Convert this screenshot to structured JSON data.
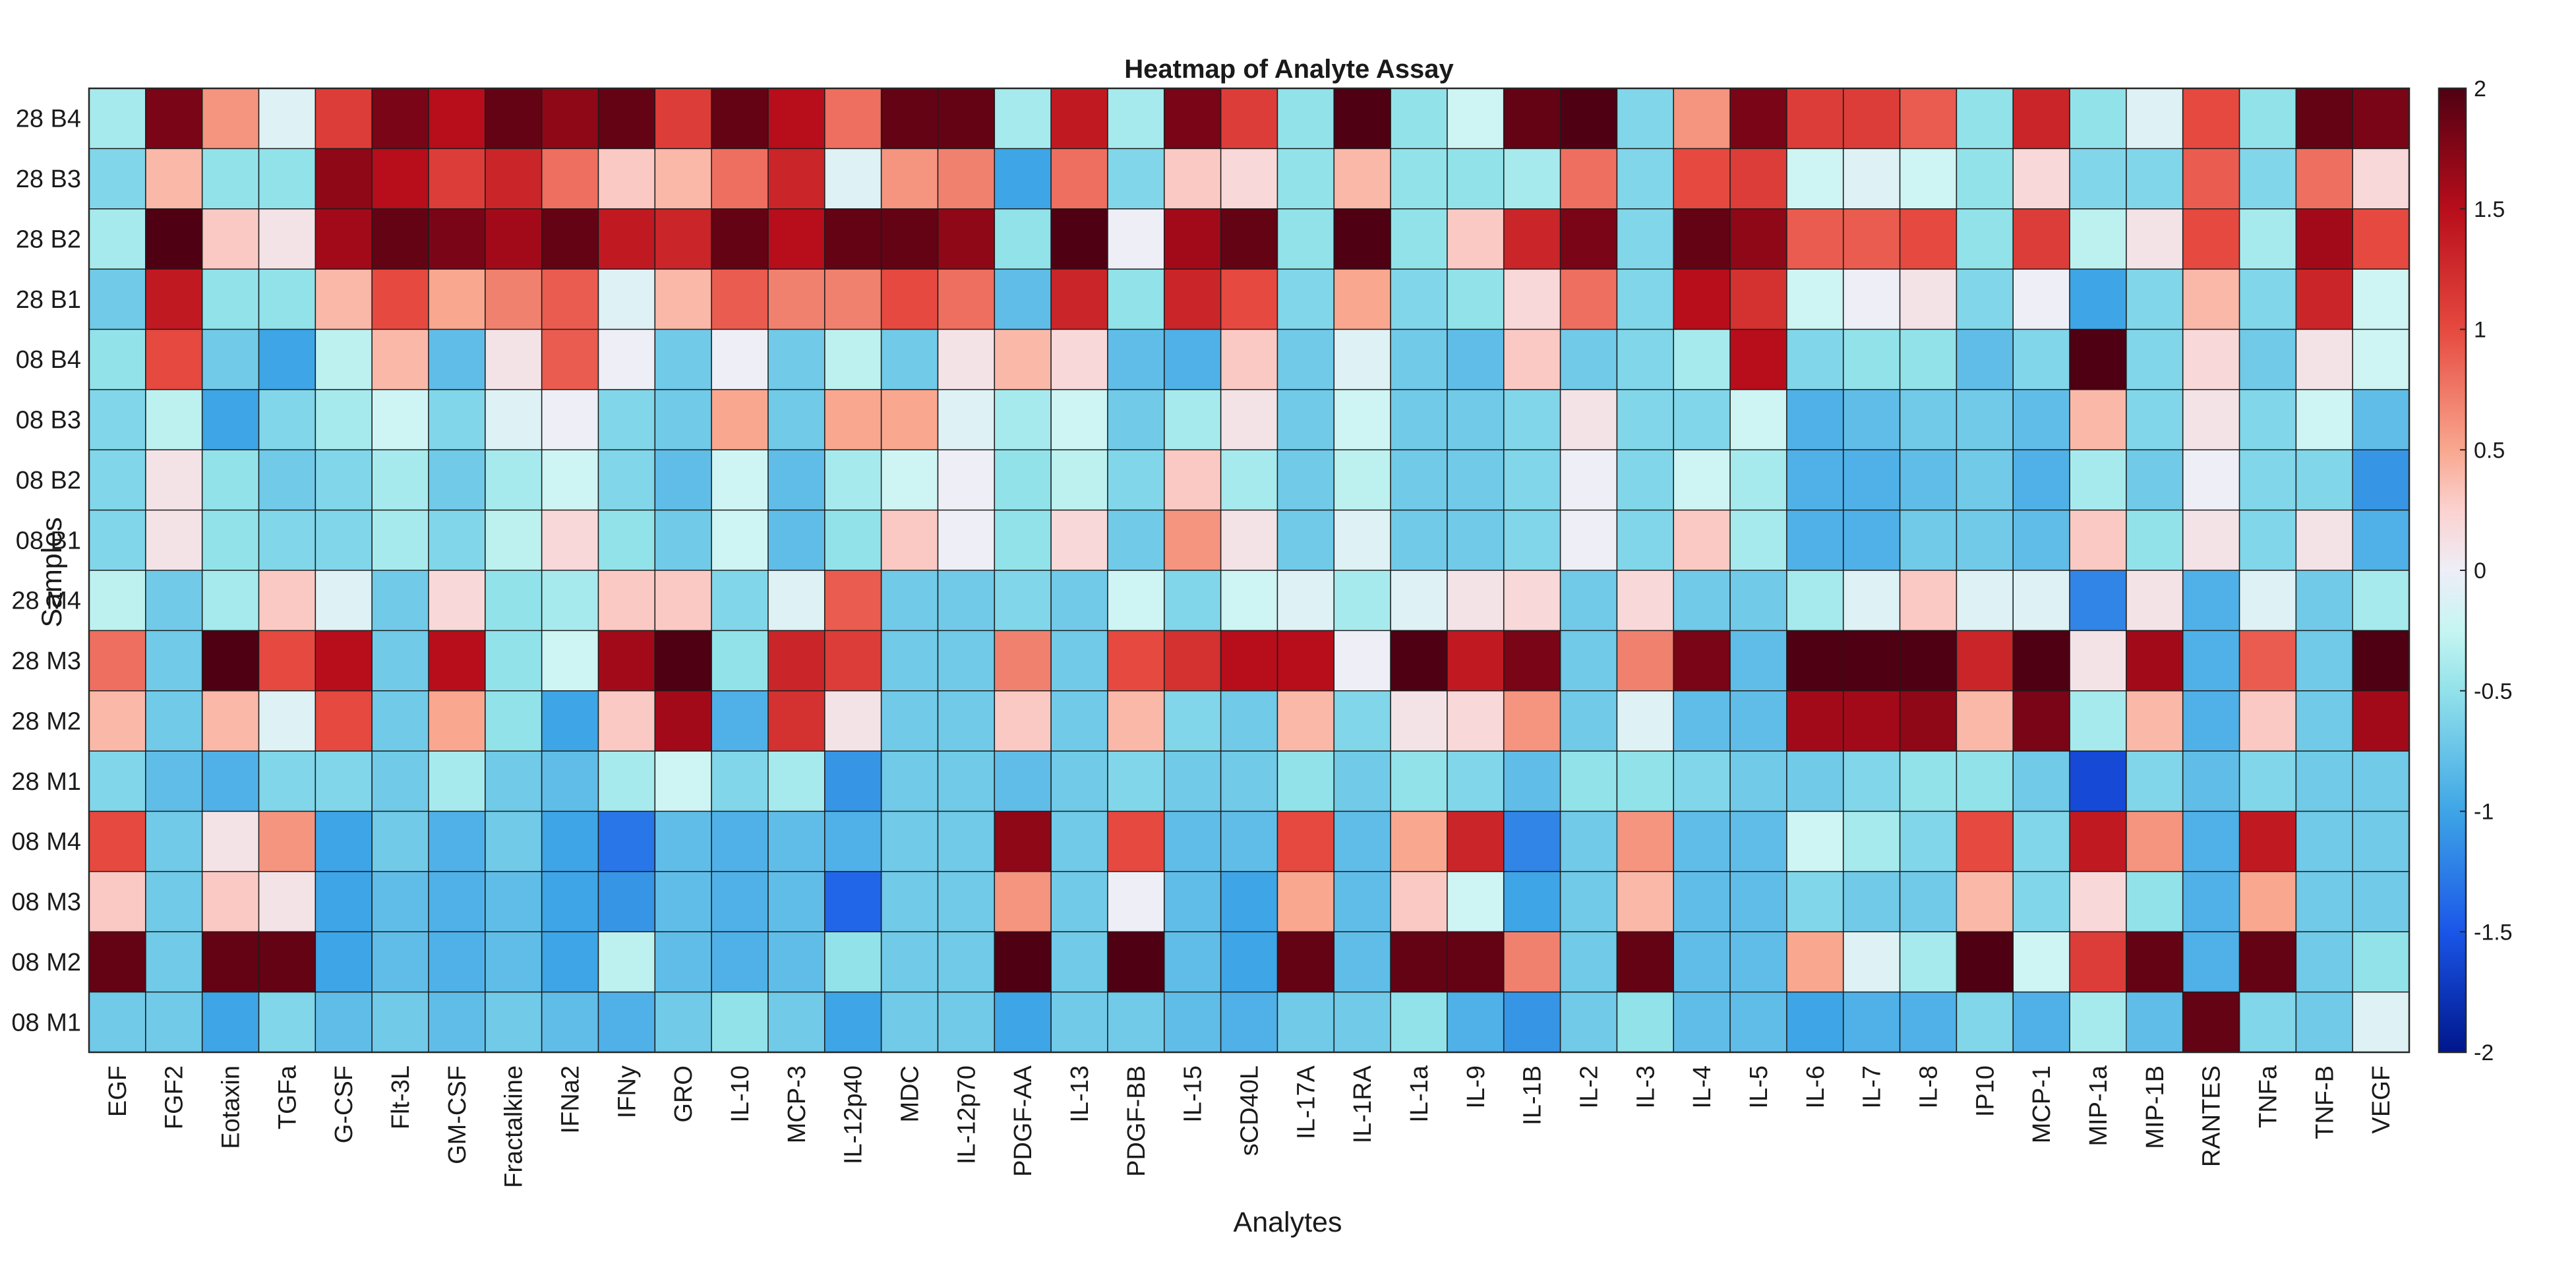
{
  "chart_data": {
    "type": "heatmap",
    "title": "Heatmap of Analyte Assay",
    "xlabel": "Analytes",
    "ylabel": "Samples",
    "x_categories": [
      "EGF",
      "FGF2",
      "Eotaxin",
      "TGFa",
      "G-CSF",
      "Flt-3L",
      "GM-CSF",
      "Fractalkine",
      "IFNa2",
      "IFNy",
      "GRO",
      "IL-10",
      "MCP-3",
      "IL-12p40",
      "MDC",
      "IL-12p70",
      "PDGF-AA",
      "IL-13",
      "PDGF-BB",
      "IL-15",
      "sCD40L",
      "IL-17A",
      "IL-1RA",
      "IL-1a",
      "IL-9",
      "IL-1B",
      "IL-2",
      "IL-3",
      "IL-4",
      "IL-5",
      "IL-6",
      "IL-7",
      "IL-8",
      "IP10",
      "MCP-1",
      "MIP-1a",
      "MIP-1B",
      "RANTES",
      "TNFa",
      "TNF-B",
      "VEGF"
    ],
    "y_categories": [
      "28 B4",
      "28 B3",
      "28 B2",
      "28 B1",
      "08 B4",
      "08 B3",
      "08 B2",
      "08 B1",
      "28 M4",
      "28 M3",
      "28 M2",
      "28 M1",
      "08 M4",
      "08 M3",
      "08 M2",
      "08 M1"
    ],
    "values": [
      [
        -0.4,
        1.8,
        0.6,
        -0.1,
        1.1,
        1.8,
        1.5,
        1.9,
        1.7,
        1.9,
        1.1,
        1.9,
        1.5,
        0.8,
        1.9,
        1.9,
        -0.4,
        1.4,
        -0.4,
        1.8,
        1.1,
        -0.5,
        2.0,
        -0.5,
        -0.2,
        1.9,
        2.0,
        -0.6,
        0.6,
        1.8,
        1.1,
        1.1,
        0.9,
        -0.5,
        1.3,
        -0.5,
        -0.1,
        1.0,
        -0.5,
        1.9,
        1.8
      ],
      [
        -0.6,
        0.4,
        -0.5,
        -0.5,
        1.7,
        1.5,
        1.1,
        1.3,
        0.8,
        0.3,
        0.4,
        0.8,
        1.3,
        -0.1,
        0.6,
        0.7,
        -1.0,
        0.8,
        -0.6,
        0.3,
        0.2,
        -0.5,
        0.4,
        -0.5,
        -0.5,
        -0.4,
        0.8,
        -0.6,
        1.0,
        1.1,
        -0.2,
        -0.1,
        -0.2,
        -0.5,
        0.2,
        -0.6,
        -0.6,
        0.9,
        -0.6,
        0.8,
        0.2
      ],
      [
        -0.4,
        2.0,
        0.3,
        0.1,
        1.6,
        1.9,
        1.8,
        1.6,
        1.9,
        1.4,
        1.3,
        1.9,
        1.5,
        1.9,
        1.9,
        1.7,
        -0.5,
        2.0,
        0.0,
        1.6,
        1.9,
        -0.5,
        2.0,
        -0.5,
        0.3,
        1.3,
        1.8,
        -0.6,
        1.9,
        1.7,
        0.9,
        0.9,
        1.0,
        -0.5,
        1.1,
        -0.3,
        0.1,
        1.0,
        -0.4,
        1.6,
        1.0
      ],
      [
        -0.7,
        1.4,
        -0.5,
        -0.5,
        0.4,
        1.0,
        0.5,
        0.7,
        0.9,
        -0.1,
        0.4,
        0.9,
        0.7,
        0.7,
        1.0,
        0.8,
        -0.8,
        1.3,
        -0.5,
        1.3,
        1.0,
        -0.6,
        0.5,
        -0.6,
        -0.5,
        0.2,
        0.8,
        -0.6,
        1.5,
        1.2,
        -0.2,
        0.0,
        0.1,
        -0.6,
        0.0,
        -1.0,
        -0.6,
        0.4,
        -0.6,
        1.3,
        -0.2
      ],
      [
        -0.5,
        1.0,
        -0.7,
        -1.0,
        -0.3,
        0.4,
        -0.8,
        0.1,
        0.9,
        0.0,
        -0.7,
        0.0,
        -0.7,
        -0.3,
        -0.7,
        0.1,
        0.4,
        0.2,
        -0.8,
        -0.9,
        0.3,
        -0.7,
        -0.1,
        -0.7,
        -0.8,
        0.3,
        -0.7,
        -0.6,
        -0.4,
        1.5,
        -0.6,
        -0.5,
        -0.5,
        -0.8,
        -0.6,
        2.0,
        -0.6,
        0.2,
        -0.7,
        0.1,
        -0.2
      ],
      [
        -0.6,
        -0.3,
        -1.0,
        -0.6,
        -0.4,
        -0.2,
        -0.6,
        -0.1,
        0.0,
        -0.6,
        -0.7,
        0.5,
        -0.7,
        0.5,
        0.5,
        -0.1,
        -0.4,
        -0.2,
        -0.7,
        -0.4,
        0.1,
        -0.7,
        -0.2,
        -0.7,
        -0.7,
        -0.6,
        0.1,
        -0.6,
        -0.6,
        -0.2,
        -0.9,
        -0.8,
        -0.7,
        -0.7,
        -0.8,
        0.4,
        -0.6,
        0.1,
        -0.6,
        -0.2,
        -0.8
      ],
      [
        -0.6,
        0.1,
        -0.5,
        -0.7,
        -0.6,
        -0.4,
        -0.7,
        -0.4,
        -0.2,
        -0.6,
        -0.8,
        -0.2,
        -0.8,
        -0.4,
        -0.2,
        0.0,
        -0.5,
        -0.3,
        -0.6,
        0.3,
        -0.4,
        -0.7,
        -0.3,
        -0.7,
        -0.7,
        -0.6,
        0.0,
        -0.6,
        -0.2,
        -0.4,
        -0.9,
        -0.9,
        -0.8,
        -0.7,
        -0.9,
        -0.4,
        -0.7,
        0.0,
        -0.6,
        -0.6,
        -1.1
      ],
      [
        -0.6,
        0.1,
        -0.5,
        -0.6,
        -0.6,
        -0.4,
        -0.6,
        -0.3,
        0.2,
        -0.5,
        -0.7,
        -0.2,
        -0.8,
        -0.5,
        0.3,
        0.0,
        -0.5,
        0.2,
        -0.7,
        0.6,
        0.1,
        -0.7,
        -0.1,
        -0.7,
        -0.7,
        -0.6,
        0.0,
        -0.6,
        0.3,
        -0.4,
        -0.9,
        -0.9,
        -0.7,
        -0.7,
        -0.8,
        0.3,
        -0.5,
        0.1,
        -0.6,
        0.1,
        -0.9
      ],
      [
        -0.3,
        -0.7,
        -0.4,
        0.3,
        -0.1,
        -0.7,
        0.2,
        -0.5,
        -0.4,
        0.3,
        0.3,
        -0.6,
        -0.1,
        0.9,
        -0.7,
        -0.7,
        -0.6,
        -0.7,
        -0.2,
        -0.6,
        -0.2,
        -0.1,
        -0.4,
        -0.1,
        0.1,
        0.2,
        -0.7,
        0.2,
        -0.7,
        -0.7,
        -0.4,
        -0.1,
        0.3,
        -0.1,
        -0.1,
        -1.2,
        0.1,
        -0.9,
        -0.1,
        -0.7,
        -0.4
      ],
      [
        0.8,
        -0.7,
        2.0,
        1.0,
        1.5,
        -0.7,
        1.5,
        -0.5,
        -0.2,
        1.6,
        2.0,
        -0.5,
        1.3,
        1.1,
        -0.7,
        -0.7,
        0.7,
        -0.7,
        1.0,
        1.2,
        1.5,
        1.5,
        0.0,
        2.0,
        1.4,
        1.8,
        -0.7,
        0.7,
        1.8,
        -0.8,
        2.0,
        2.0,
        2.0,
        1.3,
        2.0,
        0.1,
        1.6,
        -0.9,
        0.9,
        -0.7,
        2.0
      ],
      [
        0.4,
        -0.7,
        0.4,
        -0.1,
        1.0,
        -0.7,
        0.5,
        -0.5,
        -1.0,
        0.3,
        1.6,
        -0.9,
        1.2,
        0.1,
        -0.7,
        -0.7,
        0.3,
        -0.7,
        0.4,
        -0.6,
        -0.7,
        0.4,
        -0.6,
        0.1,
        0.2,
        0.6,
        -0.7,
        -0.1,
        -0.8,
        -0.8,
        1.6,
        1.6,
        1.7,
        0.4,
        1.8,
        -0.4,
        0.4,
        -0.9,
        0.3,
        -0.7,
        1.6
      ],
      [
        -0.6,
        -0.8,
        -0.9,
        -0.6,
        -0.6,
        -0.7,
        -0.4,
        -0.7,
        -0.8,
        -0.4,
        -0.2,
        -0.6,
        -0.4,
        -1.1,
        -0.7,
        -0.7,
        -0.8,
        -0.7,
        -0.6,
        -0.7,
        -0.7,
        -0.5,
        -0.7,
        -0.5,
        -0.6,
        -0.8,
        -0.5,
        -0.5,
        -0.6,
        -0.7,
        -0.7,
        -0.6,
        -0.5,
        -0.5,
        -0.7,
        -1.6,
        -0.6,
        -0.8,
        -0.6,
        -0.7,
        -0.7
      ],
      [
        1.0,
        -0.7,
        0.1,
        0.6,
        -1.0,
        -0.7,
        -0.9,
        -0.7,
        -1.0,
        -1.3,
        -0.8,
        -0.9,
        -0.8,
        -0.9,
        -0.7,
        -0.7,
        1.7,
        -0.7,
        1.0,
        -0.8,
        -0.8,
        1.0,
        -0.8,
        0.5,
        1.3,
        -1.2,
        -0.7,
        0.6,
        -0.8,
        -0.8,
        -0.2,
        -0.4,
        -0.6,
        1.0,
        -0.6,
        1.4,
        0.6,
        -0.9,
        1.4,
        -0.7,
        -0.7
      ],
      [
        0.3,
        -0.7,
        0.3,
        0.1,
        -1.0,
        -0.8,
        -0.9,
        -0.8,
        -1.0,
        -1.1,
        -0.8,
        -0.9,
        -0.8,
        -1.4,
        -0.7,
        -0.7,
        0.6,
        -0.7,
        0.0,
        -0.8,
        -1.0,
        0.5,
        -0.8,
        0.3,
        -0.2,
        -1.0,
        -0.7,
        0.4,
        -0.8,
        -0.8,
        -0.6,
        -0.7,
        -0.7,
        0.4,
        -0.6,
        0.2,
        -0.5,
        -0.9,
        0.5,
        -0.7,
        -0.7
      ],
      [
        1.9,
        -0.7,
        1.9,
        1.9,
        -1.0,
        -0.8,
        -0.9,
        -0.8,
        -1.0,
        -0.3,
        -0.8,
        -0.9,
        -0.8,
        -0.5,
        -0.7,
        -0.7,
        2.0,
        -0.7,
        2.0,
        -0.8,
        -1.0,
        1.9,
        -0.8,
        1.9,
        1.9,
        0.7,
        -0.7,
        1.9,
        -0.8,
        -0.8,
        0.5,
        -0.1,
        -0.4,
        2.0,
        -0.2,
        1.1,
        1.9,
        -0.9,
        1.9,
        -0.7,
        -0.5
      ],
      [
        -0.7,
        -0.7,
        -1.0,
        -0.6,
        -0.8,
        -0.7,
        -0.8,
        -0.7,
        -0.8,
        -0.9,
        -0.7,
        -0.5,
        -0.7,
        -1.0,
        -0.7,
        -0.7,
        -1.0,
        -0.7,
        -0.7,
        -0.8,
        -0.9,
        -0.7,
        -0.7,
        -0.5,
        -0.9,
        -1.1,
        -0.7,
        -0.5,
        -0.8,
        -0.8,
        -1.0,
        -0.9,
        -0.9,
        -0.6,
        -0.9,
        -0.4,
        -0.8,
        1.9,
        -0.6,
        -0.7,
        -0.1
      ]
    ],
    "colorbar": {
      "min": -2,
      "max": 2,
      "ticks": [
        "2",
        "1.5",
        "1",
        "0.5",
        "0",
        "-0.5",
        "-1",
        "-1.5",
        "-2"
      ],
      "tick_values": [
        2,
        1.5,
        1,
        0.5,
        0,
        -0.5,
        -1,
        -1.5,
        -2
      ]
    },
    "colormap_stops": [
      {
        "v": -2.0,
        "c": "#00168c"
      },
      {
        "v": -1.5,
        "c": "#1a56e8"
      },
      {
        "v": -1.0,
        "c": "#3ea5e6"
      },
      {
        "v": -0.5,
        "c": "#92e2ea"
      },
      {
        "v": -0.25,
        "c": "#c6f5f2"
      },
      {
        "v": 0.0,
        "c": "#eeeef7"
      },
      {
        "v": 0.25,
        "c": "#fbd2d0"
      },
      {
        "v": 0.5,
        "c": "#f9a78f"
      },
      {
        "v": 1.0,
        "c": "#e6493f"
      },
      {
        "v": 1.5,
        "c": "#b80d1b"
      },
      {
        "v": 2.0,
        "c": "#4f0012"
      }
    ]
  }
}
